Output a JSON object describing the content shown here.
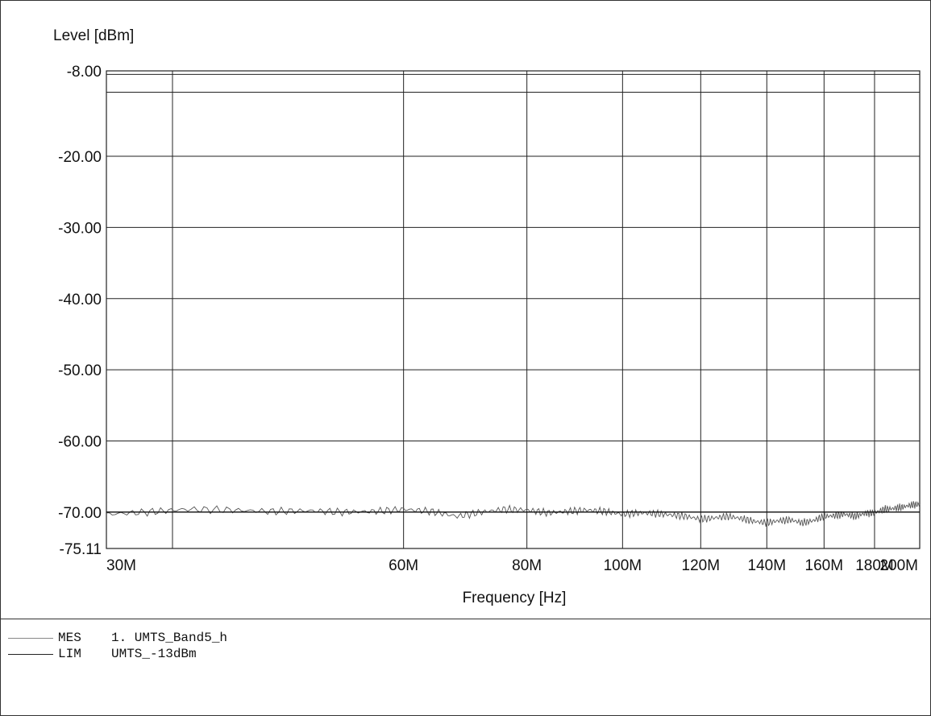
{
  "chart_data": {
    "type": "line",
    "ylabel": "Level [dBm]",
    "xlabel": "Frequency [Hz]",
    "ylim": [
      -75.11,
      -8.0
    ],
    "xlim": [
      30,
      200
    ],
    "x_scale": "log",
    "y_ticks": [
      -8.0,
      -20.0,
      -30.0,
      -40.0,
      -50.0,
      -60.0,
      -70.0,
      -75.11
    ],
    "y_tick_labels": [
      "-8.00",
      "-20.00",
      "-30.00",
      "-40.00",
      "-50.00",
      "-60.00",
      "-70.00",
      "-75.11"
    ],
    "x_ticks": [
      30,
      60,
      80,
      100,
      120,
      140,
      160,
      180,
      200
    ],
    "x_tick_labels": [
      "30M",
      "60M",
      "80M",
      "100M",
      "120M",
      "140M",
      "160M",
      "180M",
      "200M"
    ],
    "x_grid": [
      35,
      60,
      80,
      100,
      120,
      140,
      160,
      180
    ],
    "y_extra_lines": [
      -8.5,
      -11.0
    ],
    "grid": true,
    "series": [
      {
        "name": "1. UMTS_Band5_h",
        "style": "measurement",
        "x": [
          30,
          33,
          36,
          40,
          44,
          48,
          52,
          56,
          60,
          64,
          68,
          72,
          76,
          80,
          84,
          88,
          92,
          96,
          100,
          104,
          108,
          112,
          116,
          120,
          124,
          128,
          132,
          136,
          140,
          144,
          148,
          152,
          156,
          160,
          164,
          168,
          172,
          176,
          180,
          184,
          188,
          192,
          196,
          200
        ],
        "y": [
          -70.3,
          -70.0,
          -69.6,
          -69.7,
          -69.9,
          -69.8,
          -70.0,
          -69.9,
          -69.6,
          -69.9,
          -70.6,
          -70.0,
          -69.6,
          -69.7,
          -70.1,
          -69.9,
          -69.7,
          -69.9,
          -70.3,
          -70.1,
          -70.2,
          -70.4,
          -70.6,
          -71.0,
          -70.8,
          -70.6,
          -70.9,
          -71.3,
          -71.5,
          -71.2,
          -71.1,
          -71.5,
          -71.2,
          -70.6,
          -70.5,
          -70.3,
          -70.6,
          -70.2,
          -70.1,
          -69.6,
          -69.5,
          -69.3,
          -69.0,
          -68.9
        ]
      },
      {
        "name": "UMTS_-13dBm",
        "style": "limit",
        "x": [
          30,
          200
        ],
        "y": [
          -70.0,
          -70.0
        ]
      }
    ]
  },
  "legend": {
    "items": [
      {
        "code": "MES",
        "text": "1. UMTS_Band5_h"
      },
      {
        "code": "LIM",
        "text": "UMTS_-13dBm"
      }
    ]
  }
}
